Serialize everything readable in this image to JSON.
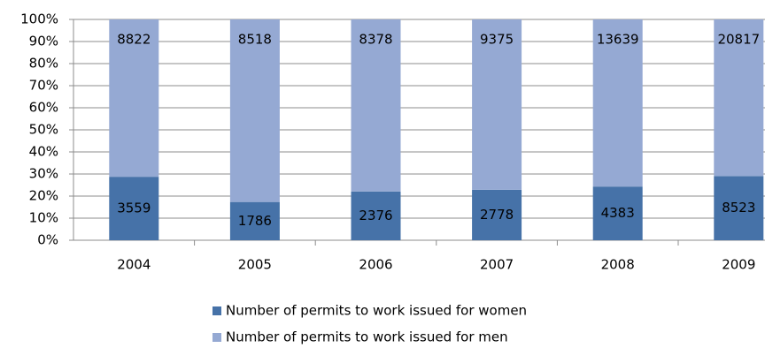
{
  "chart_data": {
    "type": "stacked_percent_bar",
    "categories": [
      "2004",
      "2005",
      "2006",
      "2007",
      "2008",
      "2009"
    ],
    "series": [
      {
        "name": "Number of permits to work issued for women",
        "color": "#4672a8",
        "values": [
          3559,
          1786,
          2376,
          2778,
          4383,
          8523
        ]
      },
      {
        "name": "Number of permits to work issued for men",
        "color": "#95a9d3",
        "values": [
          8822,
          8518,
          8378,
          9375,
          13639,
          20817
        ]
      }
    ],
    "ylim": [
      0,
      100
    ],
    "yticks": [
      {
        "value": 0,
        "label": "0%"
      },
      {
        "value": 10,
        "label": "10%"
      },
      {
        "value": 20,
        "label": "20%"
      },
      {
        "value": 30,
        "label": "30%"
      },
      {
        "value": 40,
        "label": "40%"
      },
      {
        "value": 50,
        "label": "50%"
      },
      {
        "value": 60,
        "label": "60%"
      },
      {
        "value": 70,
        "label": "70%"
      },
      {
        "value": 80,
        "label": "80%"
      },
      {
        "value": 90,
        "label": "90%"
      },
      {
        "value": 100,
        "label": "100%"
      }
    ],
    "grid": true
  }
}
